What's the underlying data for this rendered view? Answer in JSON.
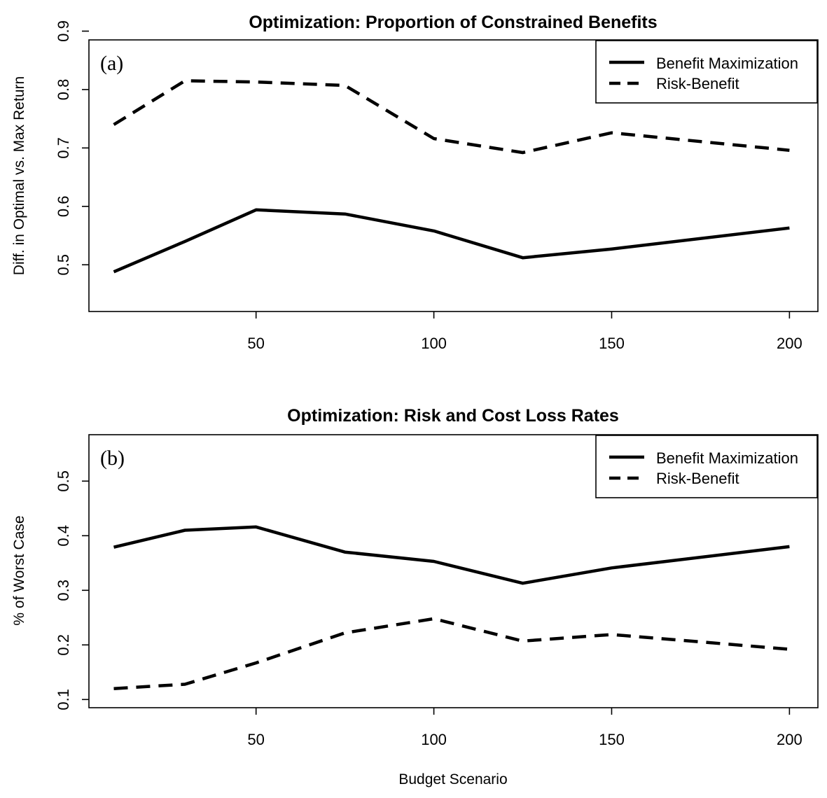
{
  "chart_data": [
    {
      "type": "line",
      "panel_label": "(a)",
      "title": "Optimization: Proportion of Constrained Benefits",
      "xlabel": "",
      "ylabel": "Diff. in Optimal vs. Max Return",
      "x": [
        10,
        30,
        50,
        75,
        100,
        125,
        150,
        200
      ],
      "xlim": [
        3,
        208
      ],
      "ylim": [
        0.42,
        0.885
      ],
      "xticks": [
        50,
        100,
        150,
        200
      ],
      "xtick_labels": [
        "50",
        "100",
        "150",
        "200"
      ],
      "yticks": [
        0.5,
        0.6,
        0.7,
        0.8,
        0.9
      ],
      "ytick_labels": [
        "0.5",
        "0.6",
        "0.7",
        "0.8",
        "0.9"
      ],
      "legend_position": "top-right",
      "series": [
        {
          "name": "Benefit Maximization",
          "style": "solid",
          "values": [
            0.488,
            0.54,
            0.594,
            0.587,
            0.558,
            0.512,
            0.527,
            0.563
          ]
        },
        {
          "name": "Risk-Benefit",
          "style": "dashed",
          "values": [
            0.74,
            0.815,
            0.813,
            0.807,
            0.716,
            0.692,
            0.726,
            0.696
          ]
        }
      ]
    },
    {
      "type": "line",
      "panel_label": "(b)",
      "title": "Optimization: Risk and Cost Loss Rates",
      "xlabel": "Budget Scenario",
      "ylabel": "% of Worst Case",
      "x": [
        10,
        30,
        50,
        75,
        100,
        125,
        150,
        200
      ],
      "xlim": [
        3,
        208
      ],
      "ylim": [
        0.085,
        0.585
      ],
      "xticks": [
        50,
        100,
        150,
        200
      ],
      "xtick_labels": [
        "50",
        "100",
        "150",
        "200"
      ],
      "yticks": [
        0.1,
        0.2,
        0.3,
        0.4,
        0.5
      ],
      "ytick_labels": [
        "0.1",
        "0.2",
        "0.3",
        "0.4",
        "0.5"
      ],
      "legend_position": "top-right",
      "series": [
        {
          "name": "Benefit Maximization",
          "style": "solid",
          "values": [
            0.379,
            0.41,
            0.416,
            0.37,
            0.353,
            0.313,
            0.341,
            0.38
          ]
        },
        {
          "name": "Risk-Benefit",
          "style": "dashed",
          "values": [
            0.12,
            0.128,
            0.167,
            0.222,
            0.248,
            0.207,
            0.219,
            0.192
          ]
        }
      ]
    }
  ]
}
